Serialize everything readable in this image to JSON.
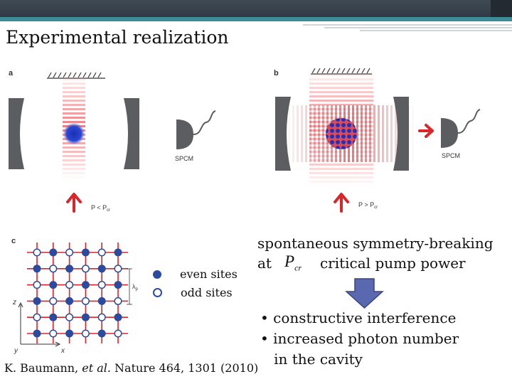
{
  "header": {
    "title": "Experimental realization"
  },
  "figure": {
    "panel_a": {
      "label": "a",
      "detector": "SPCM",
      "pump": "P < P",
      "pump_sub": "cr"
    },
    "panel_b": {
      "label": "b",
      "detector": "SPCM",
      "pump": "P > P",
      "pump_sub": "cr"
    },
    "panel_c": {
      "label": "c",
      "axis_z": "z",
      "axis_y": "y",
      "axis_x": "x",
      "lambda": "λ",
      "lambda_sub": "p"
    },
    "colors": {
      "even": "#2c4a9e",
      "odd": "#ffffff",
      "red": "#d9262b",
      "mirror": "#5b5d60",
      "arrow_box": "#5a68b0"
    }
  },
  "legend": {
    "even": "even sites",
    "odd": "odd sites"
  },
  "text": {
    "line1": "spontaneous symmetry-breaking",
    "line2a": "at",
    "line2b": "critical pump power",
    "pcr": "P",
    "pcr_sub": "cr"
  },
  "bullets": [
    "• constructive interference",
    "• increased photon number",
    "   in the cavity"
  ],
  "citation": {
    "authors": "K. Baumann, ",
    "etal": "et al.",
    "rest": " Nature 464, 1301 (2010)"
  }
}
